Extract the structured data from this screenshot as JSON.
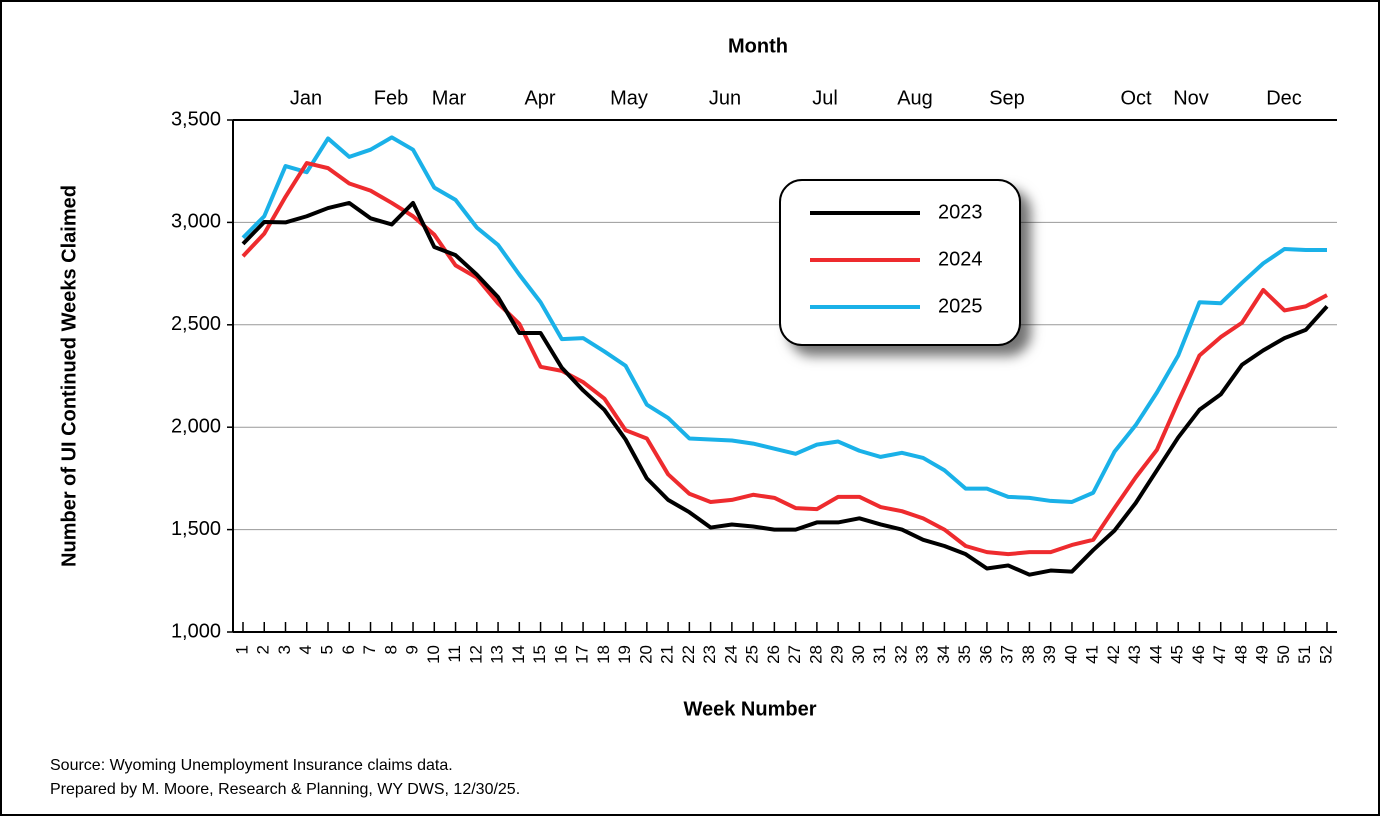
{
  "chart_data": {
    "type": "line",
    "top_axis_label": "Month",
    "months": [
      "Jan",
      "Feb",
      "Mar",
      "Apr",
      "May",
      "Jun",
      "Jul",
      "Aug",
      "Sep",
      "Oct",
      "Nov",
      "Dec"
    ],
    "x_label": "Week Number",
    "y_label": "Number of UI Continued Weeks Claimed",
    "categories": [
      "1",
      "2",
      "3",
      "4",
      "5",
      "6",
      "7",
      "8",
      "9",
      "10",
      "11",
      "12",
      "13",
      "14",
      "15",
      "16",
      "17",
      "18",
      "19",
      "20",
      "21",
      "22",
      "23",
      "24",
      "25",
      "26",
      "27",
      "28",
      "29",
      "30",
      "31",
      "32",
      "33",
      "34",
      "35",
      "36",
      "37",
      "38",
      "39",
      "40",
      "41",
      "42",
      "43",
      "44",
      "45",
      "46",
      "47",
      "48",
      "49",
      "50",
      "51",
      "52"
    ],
    "series": [
      {
        "name": "2023",
        "color": "#000000",
        "values": [
          2895,
          3002,
          3000,
          3030,
          3070,
          3095,
          3020,
          2990,
          3095,
          2880,
          2840,
          2745,
          2635,
          2460,
          2460,
          2290,
          2180,
          2085,
          1940,
          1750,
          1645,
          1585,
          1510,
          1525,
          1515,
          1500,
          1500,
          1535,
          1535,
          1555,
          1525,
          1500,
          1450,
          1420,
          1380,
          1310,
          1325,
          1280,
          1300,
          1295,
          1400,
          1495,
          1630,
          1790,
          1950,
          2085,
          2160,
          2305,
          2375,
          2435,
          2475,
          2590
        ]
      },
      {
        "name": "2024",
        "color": "#ee2b2e",
        "values": [
          2835,
          2945,
          3125,
          3290,
          3265,
          3190,
          3155,
          3095,
          3030,
          2940,
          2790,
          2730,
          2605,
          2505,
          2295,
          2275,
          2220,
          2140,
          1985,
          1945,
          1770,
          1675,
          1635,
          1645,
          1670,
          1655,
          1605,
          1600,
          1660,
          1660,
          1610,
          1590,
          1555,
          1500,
          1420,
          1390,
          1380,
          1390,
          1390,
          1425,
          1450,
          1605,
          1755,
          1890,
          2125,
          2350,
          2440,
          2510,
          2670,
          2570,
          2590,
          2645
        ]
      },
      {
        "name": "2025",
        "color": "#1ab1e8",
        "values": [
          2925,
          3030,
          3275,
          3245,
          3410,
          3320,
          3355,
          3415,
          3355,
          3170,
          3110,
          2975,
          2890,
          2745,
          2610,
          2430,
          2435,
          2370,
          2300,
          2110,
          2045,
          1945,
          1940,
          1935,
          1920,
          1895,
          1870,
          1915,
          1930,
          1885,
          1855,
          1875,
          1850,
          1790,
          1700,
          1700,
          1660,
          1655,
          1640,
          1635,
          1680,
          1880,
          2010,
          2170,
          2350,
          2610,
          2605,
          2705,
          2800,
          2870,
          2865,
          2865
        ]
      }
    ],
    "ylim": [
      1000,
      3500
    ],
    "yticks": [
      {
        "value": 1000,
        "label": "1,000"
      },
      {
        "value": 1500,
        "label": "1,500"
      },
      {
        "value": 2000,
        "label": "2,000"
      },
      {
        "value": 2500,
        "label": "2,500"
      },
      {
        "value": 3000,
        "label": "3,000"
      },
      {
        "value": 3500,
        "label": "3,500"
      }
    ],
    "grid": true,
    "legend": "inside-top-right",
    "notes": [
      "Source: Wyoming Unemployment Insurance claims data.",
      "Prepared by M. Moore, Research & Planning, WY DWS, 12/30/25."
    ]
  }
}
